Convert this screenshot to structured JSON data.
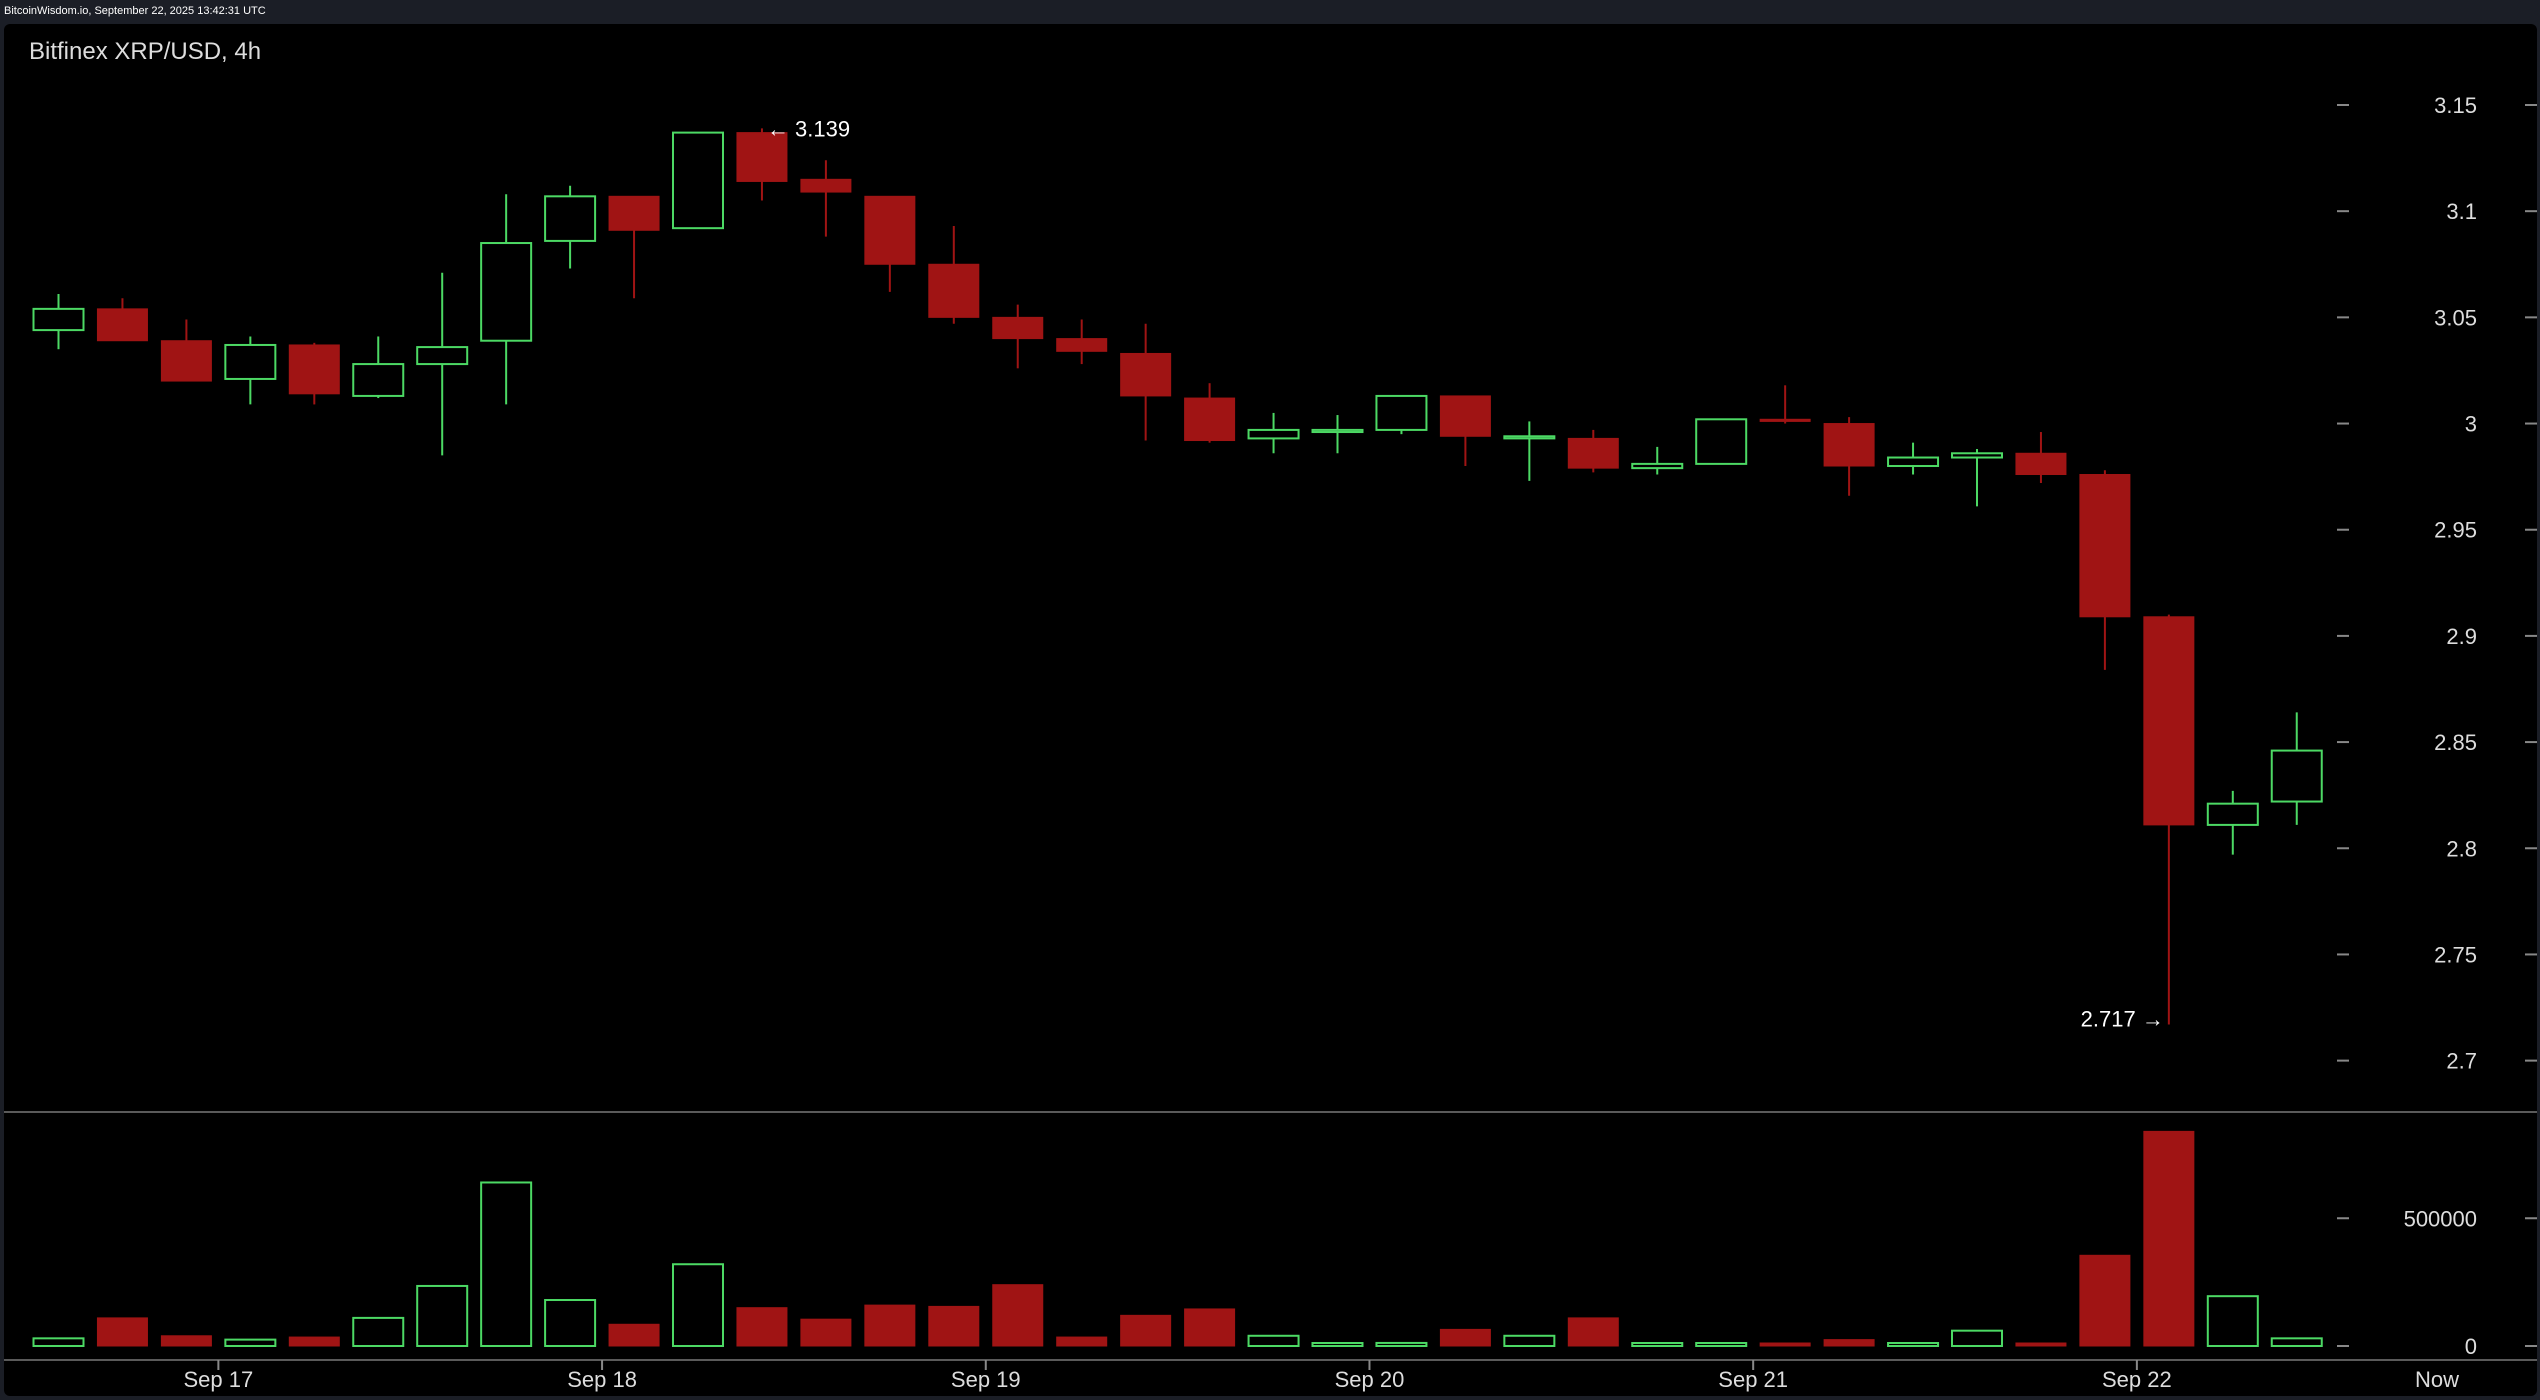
{
  "header": {
    "watermark": "BitcoinWisdom.io, September 22, 2025 13:42:31 UTC"
  },
  "chart_data": {
    "type": "candlestick",
    "title": "Bitfinex XRP/USD, 4h",
    "y_ticks": [
      "3.15",
      "3.1",
      "3.05",
      "3",
      "2.95",
      "2.9",
      "2.85",
      "2.8",
      "2.75",
      "2.7"
    ],
    "ylim": [
      2.68,
      3.18
    ],
    "volume_ticks": [
      "500000",
      "0"
    ],
    "x_ticks": [
      "Sep 17",
      "Sep 18",
      "Sep 19",
      "Sep 20",
      "Sep 21",
      "Sep 22",
      "Now"
    ],
    "annotations": {
      "high_label": "← 3.139",
      "low_label": "2.717 →"
    },
    "grid": false,
    "colors": {
      "up": "#4cd964",
      "down": "#a01414",
      "background": "#000000",
      "axis": "#888888"
    },
    "candles": [
      {
        "t": "Sep 16 20:00",
        "o": 3.044,
        "h": 3.061,
        "l": 3.035,
        "c": 3.054,
        "v": 30000
      },
      {
        "t": "Sep 17 00:00",
        "o": 3.054,
        "h": 3.059,
        "l": 3.039,
        "c": 3.039,
        "v": 110000
      },
      {
        "t": "Sep 17 04:00",
        "o": 3.039,
        "h": 3.049,
        "l": 3.02,
        "c": 3.02,
        "v": 40000
      },
      {
        "t": "Sep 17 08:00",
        "o": 3.021,
        "h": 3.041,
        "l": 3.009,
        "c": 3.037,
        "v": 25000
      },
      {
        "t": "Sep 17 12:00",
        "o": 3.037,
        "h": 3.038,
        "l": 3.009,
        "c": 3.014,
        "v": 35000
      },
      {
        "t": "Sep 17 16:00",
        "o": 3.013,
        "h": 3.041,
        "l": 3.012,
        "c": 3.028,
        "v": 110000
      },
      {
        "t": "Sep 17 20:00",
        "o": 3.028,
        "h": 3.071,
        "l": 2.985,
        "c": 3.036,
        "v": 235000
      },
      {
        "t": "Sep 18 00:00",
        "o": 3.039,
        "h": 3.108,
        "l": 3.009,
        "c": 3.085,
        "v": 640000
      },
      {
        "t": "Sep 18 04:00",
        "o": 3.086,
        "h": 3.112,
        "l": 3.073,
        "c": 3.107,
        "v": 180000
      },
      {
        "t": "Sep 18 08:00",
        "o": 3.107,
        "h": 3.107,
        "l": 3.059,
        "c": 3.091,
        "v": 85000
      },
      {
        "t": "Sep 18 12:00",
        "o": 3.092,
        "h": 3.137,
        "l": 3.092,
        "c": 3.137,
        "v": 320000
      },
      {
        "t": "Sep 18 16:00",
        "o": 3.137,
        "h": 3.139,
        "l": 3.105,
        "c": 3.114,
        "v": 150000
      },
      {
        "t": "Sep 18 20:00",
        "o": 3.115,
        "h": 3.124,
        "l": 3.088,
        "c": 3.109,
        "v": 105000
      },
      {
        "t": "Sep 19 00:00",
        "o": 3.107,
        "h": 3.107,
        "l": 3.062,
        "c": 3.075,
        "v": 160000
      },
      {
        "t": "Sep 19 04:00",
        "o": 3.075,
        "h": 3.093,
        "l": 3.047,
        "c": 3.05,
        "v": 155000
      },
      {
        "t": "Sep 19 08:00",
        "o": 3.05,
        "h": 3.056,
        "l": 3.026,
        "c": 3.04,
        "v": 240000
      },
      {
        "t": "Sep 19 12:00",
        "o": 3.04,
        "h": 3.049,
        "l": 3.028,
        "c": 3.034,
        "v": 35000
      },
      {
        "t": "Sep 19 16:00",
        "o": 3.033,
        "h": 3.047,
        "l": 2.992,
        "c": 3.013,
        "v": 120000
      },
      {
        "t": "Sep 19 20:00",
        "o": 3.012,
        "h": 3.019,
        "l": 2.991,
        "c": 2.992,
        "v": 145000
      },
      {
        "t": "Sep 20 00:00",
        "o": 2.993,
        "h": 3.005,
        "l": 2.986,
        "c": 2.997,
        "v": 40000
      },
      {
        "t": "Sep 20 04:00",
        "o": 2.996,
        "h": 3.004,
        "l": 2.986,
        "c": 2.997,
        "v": 10000
      },
      {
        "t": "Sep 20 08:00",
        "o": 2.997,
        "h": 3.013,
        "l": 2.995,
        "c": 3.013,
        "v": 12000
      },
      {
        "t": "Sep 20 12:00",
        "o": 3.013,
        "h": 3.013,
        "l": 2.98,
        "c": 2.994,
        "v": 65000
      },
      {
        "t": "Sep 20 16:00",
        "o": 2.993,
        "h": 3.001,
        "l": 2.973,
        "c": 2.994,
        "v": 40000
      },
      {
        "t": "Sep 20 20:00",
        "o": 2.993,
        "h": 2.997,
        "l": 2.977,
        "c": 2.979,
        "v": 110000
      },
      {
        "t": "Sep 21 00:00",
        "o": 2.979,
        "h": 2.989,
        "l": 2.976,
        "c": 2.981,
        "v": 10000
      },
      {
        "t": "Sep 21 04:00",
        "o": 2.981,
        "h": 3.002,
        "l": 2.981,
        "c": 3.002,
        "v": 5000
      },
      {
        "t": "Sep 21 08:00",
        "o": 3.002,
        "h": 3.018,
        "l": 3.0,
        "c": 3.001,
        "v": 10000
      },
      {
        "t": "Sep 21 12:00",
        "o": 3.0,
        "h": 3.003,
        "l": 2.966,
        "c": 2.98,
        "v": 25000
      },
      {
        "t": "Sep 21 16:00",
        "o": 2.98,
        "h": 2.991,
        "l": 2.976,
        "c": 2.984,
        "v": 5000
      },
      {
        "t": "Sep 21 20:00",
        "o": 2.984,
        "h": 2.988,
        "l": 2.961,
        "c": 2.986,
        "v": 60000
      },
      {
        "t": "Sep 22 00:00",
        "o": 2.986,
        "h": 2.996,
        "l": 2.972,
        "c": 2.976,
        "v": 10000
      },
      {
        "t": "Sep 22 04:00",
        "o": 2.976,
        "h": 2.978,
        "l": 2.884,
        "c": 2.909,
        "v": 355000
      },
      {
        "t": "Sep 22 08:00",
        "o": 2.909,
        "h": 2.91,
        "l": 2.717,
        "c": 2.811,
        "v": 840000
      },
      {
        "t": "Sep 22 12:00",
        "o": 2.811,
        "h": 2.827,
        "l": 2.797,
        "c": 2.821,
        "v": 195000
      },
      {
        "t": "Sep 22 16:00",
        "o": 2.822,
        "h": 2.864,
        "l": 2.811,
        "c": 2.846,
        "v": 30000
      }
    ]
  }
}
